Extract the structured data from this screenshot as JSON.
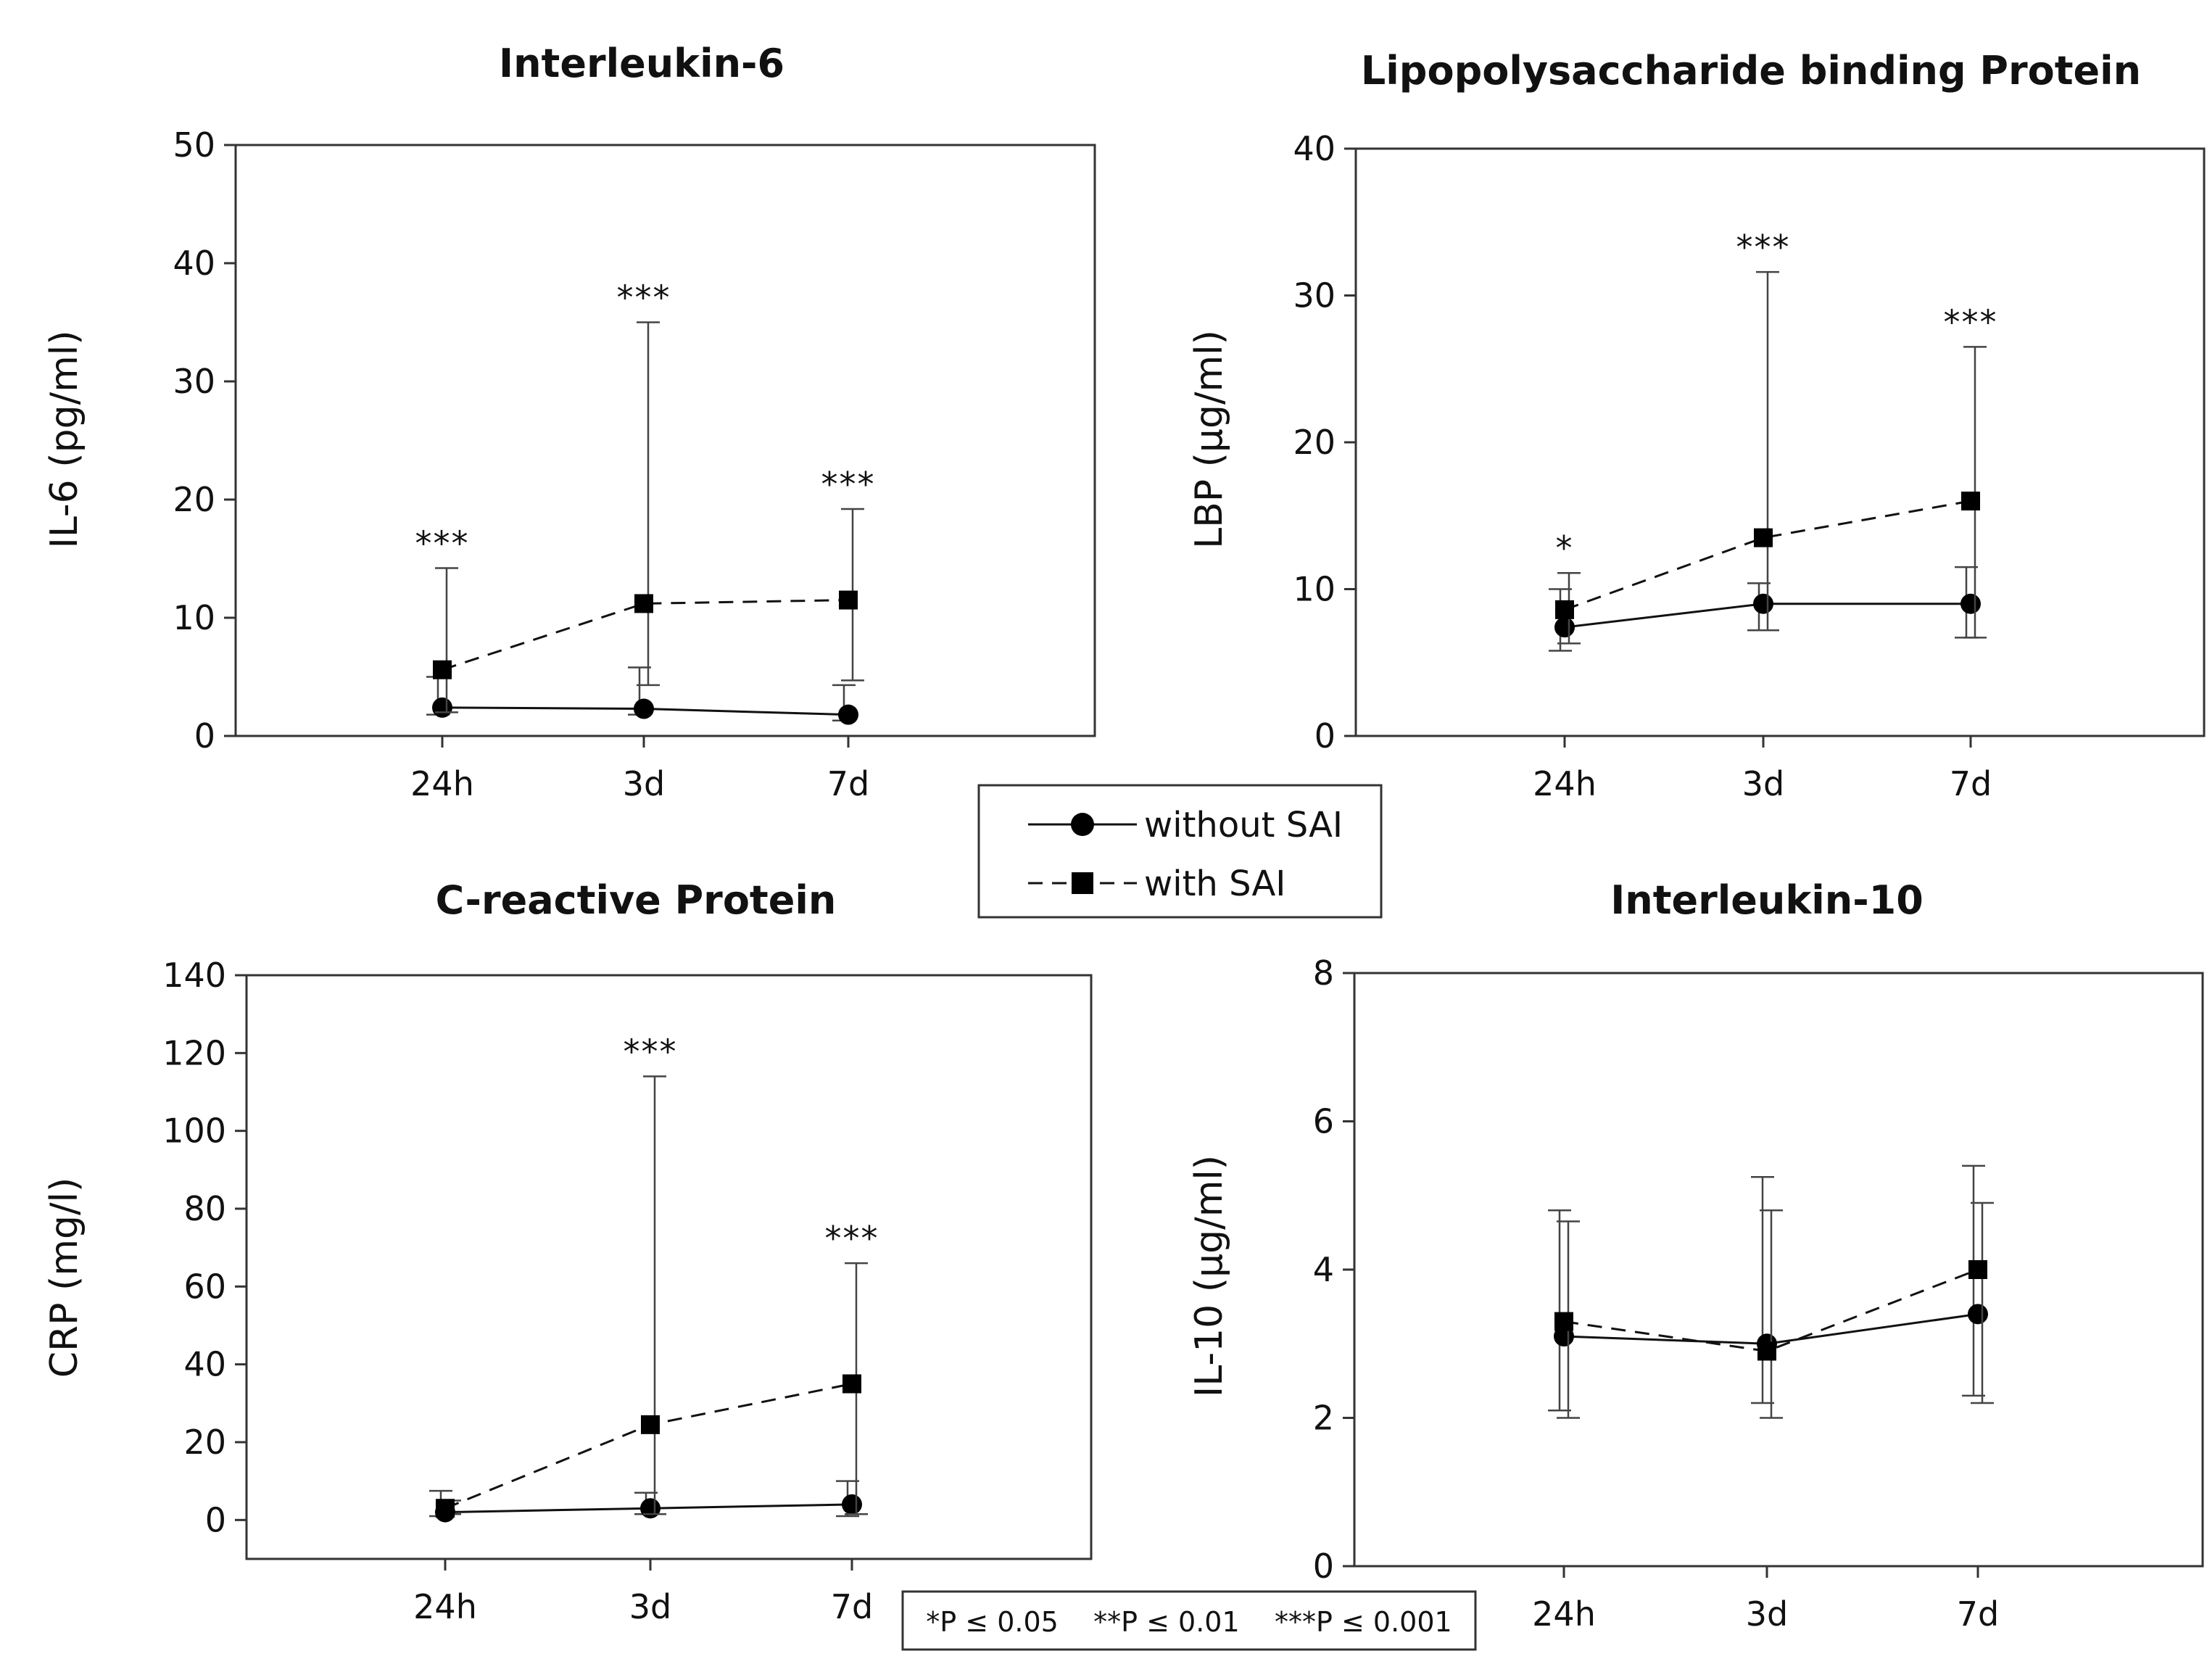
{
  "chart_data": [
    {
      "id": "il6",
      "type": "line",
      "title": "Interleukin-6",
      "ylabel": "IL-6 (pg/ml)",
      "xlabel": "",
      "ylim": [
        0,
        50
      ],
      "yticks": [
        0,
        10,
        20,
        30,
        40,
        50
      ],
      "categories": [
        "24h",
        "3d",
        "7d"
      ],
      "series": [
        {
          "name": "without SAI",
          "values": [
            2.4,
            2.3,
            1.8
          ],
          "err_low": [
            1.8,
            1.8,
            1.3
          ],
          "err_high": [
            5.0,
            5.8,
            4.3
          ]
        },
        {
          "name": "with SAI",
          "values": [
            5.6,
            11.2,
            11.5
          ],
          "err_low": [
            2.0,
            4.3,
            4.7
          ],
          "err_high": [
            14.2,
            35.0,
            19.2
          ]
        }
      ],
      "significance": [
        "***",
        "***",
        "***"
      ]
    },
    {
      "id": "lbp",
      "type": "line",
      "title": "Lipopolysaccharide binding Protein",
      "ylabel": "LBP (µg/ml)",
      "xlabel": "",
      "ylim": [
        0,
        40
      ],
      "yticks": [
        0,
        10,
        20,
        30,
        40
      ],
      "categories": [
        "24h",
        "3d",
        "7d"
      ],
      "series": [
        {
          "name": "without SAI",
          "values": [
            7.4,
            9.0,
            9.0
          ],
          "err_low": [
            5.8,
            7.2,
            6.7
          ],
          "err_high": [
            10.0,
            10.4,
            11.5
          ]
        },
        {
          "name": "with SAI",
          "values": [
            8.6,
            13.5,
            16.0
          ],
          "err_low": [
            6.3,
            7.2,
            6.7
          ],
          "err_high": [
            11.1,
            31.6,
            26.5
          ]
        }
      ],
      "significance": [
        "*",
        "***",
        "***"
      ]
    },
    {
      "id": "crp",
      "type": "line",
      "title": "C-reactive Protein",
      "ylabel": "CRP (mg/l)",
      "xlabel": "",
      "ylim": [
        -10,
        140
      ],
      "yticks": [
        0,
        20,
        40,
        60,
        80,
        100,
        120,
        140
      ],
      "categories": [
        "24h",
        "3d",
        "7d"
      ],
      "series": [
        {
          "name": "without SAI",
          "values": [
            2.0,
            3.0,
            4.0
          ],
          "err_low": [
            1.0,
            1.5,
            1.0
          ],
          "err_high": [
            7.5,
            7.0,
            10.0
          ]
        },
        {
          "name": "with SAI",
          "values": [
            3.0,
            24.5,
            35.0
          ],
          "err_low": [
            1.5,
            1.5,
            1.5
          ],
          "err_high": [
            5.0,
            114.0,
            66.0
          ]
        }
      ],
      "significance": [
        "",
        "***",
        "***"
      ]
    },
    {
      "id": "il10",
      "type": "line",
      "title": "Interleukin-10",
      "ylabel": "IL-10 (µg/ml)",
      "xlabel": "",
      "ylim": [
        0,
        8
      ],
      "yticks": [
        0,
        2,
        4,
        6,
        8
      ],
      "categories": [
        "24h",
        "3d",
        "7d"
      ],
      "series": [
        {
          "name": "without SAI",
          "values": [
            3.1,
            3.0,
            3.4
          ],
          "err_low": [
            2.1,
            2.2,
            2.3
          ],
          "err_high": [
            4.8,
            5.25,
            5.4
          ]
        },
        {
          "name": "with SAI",
          "values": [
            3.3,
            2.9,
            4.0
          ],
          "err_low": [
            2.0,
            2.0,
            2.2
          ],
          "err_high": [
            4.65,
            4.8,
            4.9
          ]
        }
      ],
      "significance": [
        "",
        "",
        ""
      ]
    }
  ],
  "legend": {
    "items": [
      {
        "label": "without SAI",
        "marker": "circle",
        "dash": "solid"
      },
      {
        "label": "with SAI",
        "marker": "square",
        "dash": "dashed"
      }
    ]
  },
  "pvalue_note": "*P ≤ 0.05    **P ≤ 0.01    ***P ≤ 0.001",
  "colors": {
    "line": "#111111",
    "axis": "#222222",
    "error": "#444444"
  }
}
